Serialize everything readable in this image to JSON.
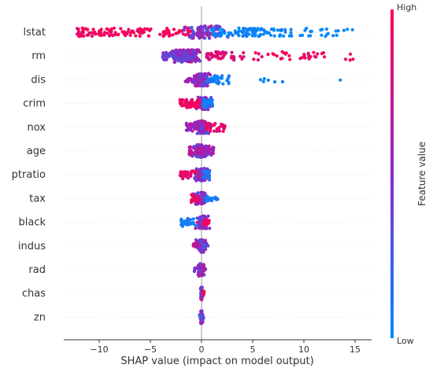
{
  "chart_data": {
    "type": "scatter",
    "subtype": "shap-beeswarm",
    "title": "",
    "xlabel": "SHAP value (impact on model output)",
    "xlim": [
      -13.5,
      16.5
    ],
    "xticks": [
      -10,
      -5,
      0,
      5,
      10,
      15
    ],
    "xtick_labels": [
      "−10",
      "−5",
      "0",
      "5",
      "10",
      "15"
    ],
    "features": [
      "lstat",
      "rm",
      "dis",
      "crim",
      "nox",
      "age",
      "ptratio",
      "tax",
      "black",
      "indus",
      "rad",
      "chas",
      "zn"
    ],
    "feature_shap_range": {
      "lstat": [
        -12.2,
        15.1
      ],
      "rm": [
        -3.9,
        15.2
      ],
      "dis": [
        -1.6,
        13.7
      ],
      "crim": [
        -2.1,
        1.1
      ],
      "nox": [
        -1.5,
        2.3
      ],
      "age": [
        -1.2,
        1.2
      ],
      "ptratio": [
        -2.1,
        0.8
      ],
      "tax": [
        -1.0,
        1.8
      ],
      "black": [
        -2.0,
        0.8
      ],
      "indus": [
        -0.8,
        0.7
      ],
      "rad": [
        -0.7,
        0.4
      ],
      "chas": [
        -0.1,
        0.3
      ],
      "zn": [
        -0.2,
        0.2
      ]
    },
    "colorbar": {
      "title": "Feature value",
      "high_label": "High",
      "low_label": "Low",
      "high_color": "#ff0052",
      "mid_color": "#8a29c9",
      "low_color": "#008bfb"
    },
    "zero_line_color": "#999999",
    "grid": false
  }
}
